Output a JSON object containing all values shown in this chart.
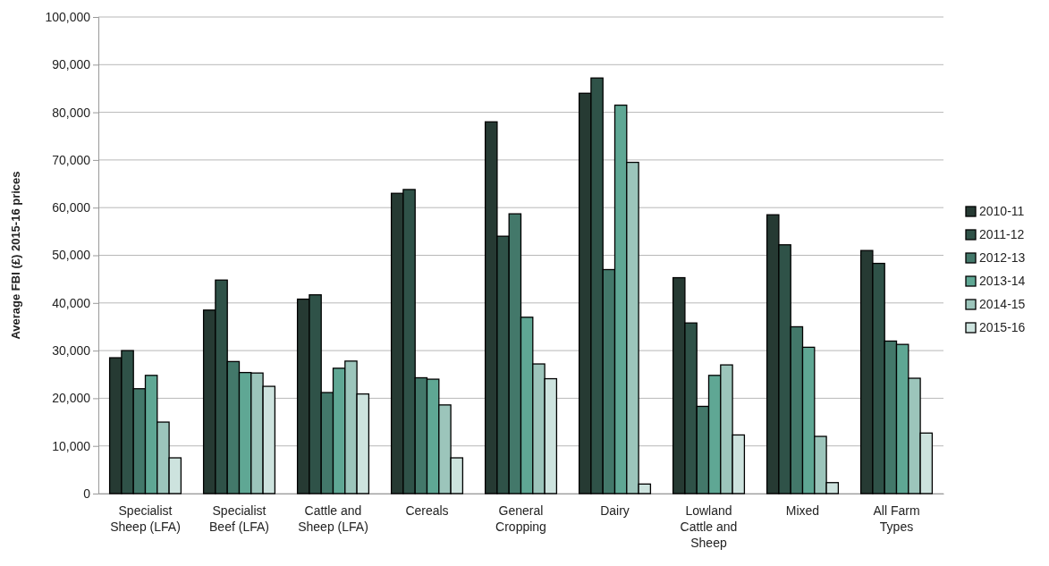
{
  "chart_data": {
    "type": "bar",
    "ylabel": "Average FBI (£) 2015-16 prices",
    "categories": [
      "Specialist Sheep (LFA)",
      "Specialist Beef  (LFA)",
      "Cattle and Sheep (LFA)",
      "Cereals",
      "General Cropping",
      "Dairy",
      "Lowland Cattle and Sheep",
      "Mixed",
      "All Farm Types"
    ],
    "series": [
      {
        "name": "2010-11",
        "color": "#263a33",
        "values": [
          28500,
          38500,
          40800,
          63000,
          78000,
          84000,
          45300,
          58500,
          51000
        ]
      },
      {
        "name": "2011-12",
        "color": "#2f5248",
        "values": [
          30000,
          44800,
          41700,
          63800,
          54000,
          87200,
          35800,
          52200,
          48300
        ]
      },
      {
        "name": "2012-13",
        "color": "#43786a",
        "values": [
          22000,
          27700,
          21200,
          24300,
          58700,
          47000,
          18300,
          35000,
          32000
        ]
      },
      {
        "name": "2013-14",
        "color": "#5fa794",
        "values": [
          24800,
          25400,
          26300,
          24000,
          37000,
          81500,
          24800,
          30700,
          31300
        ]
      },
      {
        "name": "2014-15",
        "color": "#9cc5bb",
        "values": [
          15000,
          25300,
          27800,
          18600,
          27200,
          69500,
          27000,
          12000,
          24200
        ]
      },
      {
        "name": "2015-16",
        "color": "#cde3de",
        "values": [
          7500,
          22500,
          20900,
          7500,
          24100,
          2000,
          12300,
          2300,
          12700
        ]
      }
    ],
    "ylim": [
      0,
      100000
    ],
    "yticks": [
      {
        "value": 0,
        "label": "0"
      },
      {
        "value": 10000,
        "label": "10,000"
      },
      {
        "value": 20000,
        "label": "20,000"
      },
      {
        "value": 30000,
        "label": "30,000"
      },
      {
        "value": 40000,
        "label": "40,000"
      },
      {
        "value": 50000,
        "label": "50,000"
      },
      {
        "value": 60000,
        "label": "60,000"
      },
      {
        "value": 70000,
        "label": "70,000"
      },
      {
        "value": 80000,
        "label": "80,000"
      },
      {
        "value": 90000,
        "label": "90,000"
      },
      {
        "value": 100000,
        "label": "100,000"
      }
    ],
    "grid": "y",
    "legend": "right"
  }
}
